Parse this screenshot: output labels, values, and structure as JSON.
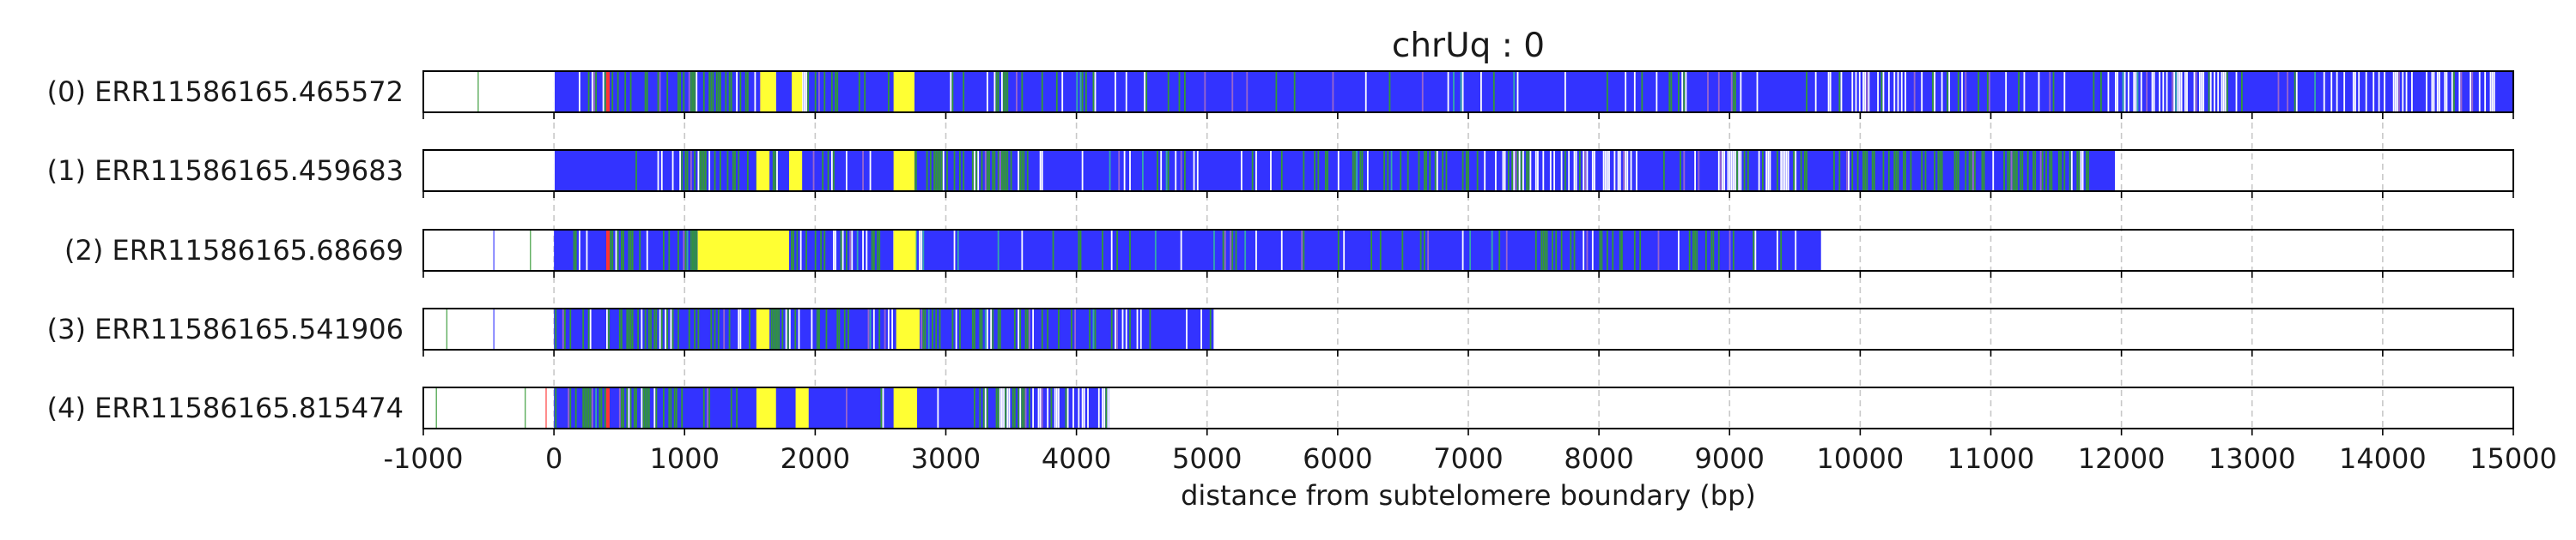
{
  "chart_data": {
    "type": "table",
    "title": "chrUq : 0",
    "xlabel": "distance from subtelomere boundary (bp)",
    "xlim": [
      -1000,
      15000
    ],
    "x_ticks": [
      -1000,
      0,
      1000,
      2000,
      3000,
      4000,
      5000,
      6000,
      7000,
      8000,
      9000,
      10000,
      11000,
      12000,
      13000,
      14000,
      15000
    ],
    "grid": "vertical dashed",
    "colors": {
      "background": "#ffffff",
      "frame": "#000000",
      "grid": "#c8c8c8",
      "blue": "#3333ff",
      "green": "#339933",
      "yellow": "#ffff33",
      "red": "#ff3333",
      "white": "#ffffff",
      "purple": "#9966cc",
      "teal": "#33aaaa"
    },
    "reads": [
      {
        "label": "(0) ERR11586165.465572",
        "read_start": -1000,
        "read_end": 15000,
        "dense_start": 0,
        "yellow_blocks": [
          [
            1580,
            1700
          ],
          [
            1820,
            1900
          ],
          [
            2600,
            2760
          ]
        ],
        "green_zones": [
          [
            300,
            1500
          ],
          [
            2000,
            2500
          ],
          [
            3300,
            3600
          ]
        ],
        "white_zones": [
          [
            9700,
            10500
          ],
          [
            11900,
            12800
          ],
          [
            13600,
            14900
          ]
        ],
        "red_marks": [
          400
        ]
      },
      {
        "label": "(1) ERR11586165.459683",
        "read_start": -1000,
        "read_end": 11950,
        "dense_start": 0,
        "yellow_blocks": [
          [
            1550,
            1650
          ],
          [
            1800,
            1900
          ],
          [
            2600,
            2760
          ]
        ],
        "green_zones": [
          [
            900,
            1700
          ],
          [
            2900,
            3600
          ],
          [
            5500,
            7500
          ],
          [
            9800,
            11800
          ]
        ],
        "white_zones": [
          [
            7200,
            8300
          ],
          [
            8900,
            9600
          ]
        ],
        "red_marks": []
      },
      {
        "label": "(2) ERR11586165.68669",
        "read_start": -1000,
        "read_end": 9700,
        "dense_start": 0,
        "yellow_blocks": [
          [
            1100,
            1800
          ],
          [
            2600,
            2770
          ]
        ],
        "green_zones": [
          [
            400,
            2500
          ],
          [
            7500,
            8200
          ],
          [
            8700,
            9200
          ]
        ],
        "white_zones": [],
        "red_marks": [
          400
        ]
      },
      {
        "label": "(3) ERR11586165.541906",
        "read_start": -1000,
        "read_end": 5050,
        "dense_start": 0,
        "yellow_blocks": [
          [
            1550,
            1650
          ],
          [
            2620,
            2800
          ]
        ],
        "green_zones": [
          [
            0,
            2500
          ],
          [
            2800,
            4500
          ]
        ],
        "white_zones": [],
        "red_marks": []
      },
      {
        "label": "(4) ERR11586165.815474",
        "read_start": -1000,
        "read_end": 4250,
        "dense_start": 0,
        "yellow_blocks": [
          [
            1550,
            1700
          ],
          [
            1850,
            1950
          ],
          [
            2600,
            2780
          ]
        ],
        "green_zones": [
          [
            0,
            1000
          ],
          [
            3200,
            3700
          ]
        ],
        "white_zones": [
          [
            3400,
            4250
          ]
        ],
        "red_marks": [
          400
        ]
      }
    ]
  }
}
